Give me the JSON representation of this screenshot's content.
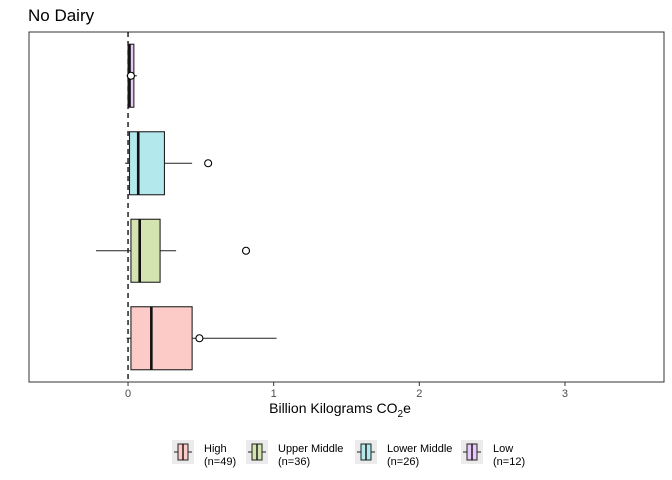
{
  "chart_data": {
    "type": "box",
    "orientation": "horizontal",
    "title": "No Dairy",
    "xlabel": {
      "main": "Billion Kilograms CO",
      "sub": "2",
      "tail": "e"
    },
    "xlim": [
      -0.68,
      3.68
    ],
    "xticks": [
      0,
      1,
      2,
      3
    ],
    "xtick_labels": [
      "0",
      "1",
      "2",
      "3"
    ],
    "reference_line": {
      "x": 0,
      "style": "dashed"
    },
    "grid": false,
    "legend_position": "bottom",
    "series": [
      {
        "name": "High",
        "count_label": "(n=49)",
        "color": "#fccbc8",
        "whisker_low": -0.01,
        "q1": 0.02,
        "median": 0.16,
        "q3": 0.44,
        "whisker_high": 1.02,
        "outliers": [],
        "mean": 0.49
      },
      {
        "name": "Upper Middle",
        "count_label": "(n=36)",
        "color": "#d3e4b0",
        "whisker_low": -0.22,
        "q1": 0.02,
        "median": 0.08,
        "q3": 0.22,
        "whisker_high": 0.33,
        "outliers": [],
        "mean": 0.81
      },
      {
        "name": "Lower Middle",
        "count_label": "(n=26)",
        "color": "#b3e8ec",
        "whisker_low": -0.02,
        "q1": 0.01,
        "median": 0.07,
        "q3": 0.25,
        "whisker_high": 0.44,
        "outliers": [],
        "mean": 0.55
      },
      {
        "name": "Low",
        "count_label": "(n=12)",
        "color": "#e8c9f7",
        "whisker_low": -0.01,
        "q1": 0.0,
        "median": 0.01,
        "q3": 0.04,
        "whisker_high": 0.06,
        "outliers": [],
        "mean": 0.02
      }
    ]
  }
}
